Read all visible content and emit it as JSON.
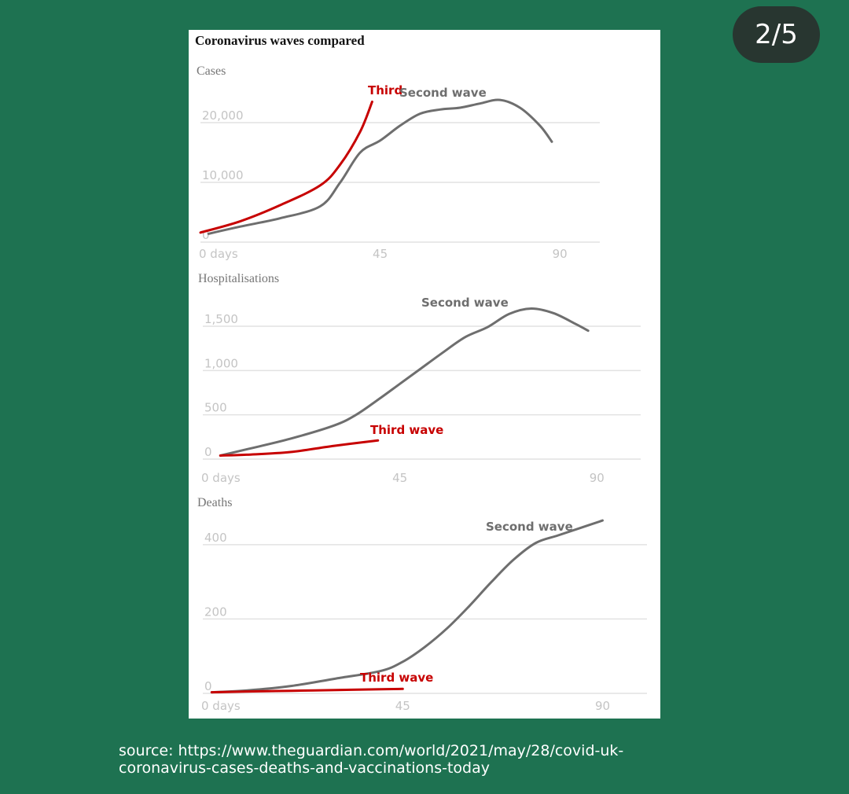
{
  "badge": "2/5",
  "title": "Coronavirus waves compared",
  "source": {
    "line1": "source: https://www.theguardian.com/world/2021/may/28/covid-uk-",
    "line2": "coronavirus-cases-deaths-and-vaccinations-today"
  },
  "colors": {
    "second_wave": "#6e6e6e",
    "third_wave": "#c70000"
  },
  "chart_data": [
    {
      "type": "line",
      "title": "Cases",
      "x_ticks": [
        0,
        45,
        90
      ],
      "x_tick_labels": [
        "0 days",
        "45",
        "90"
      ],
      "y_ticks": [
        0,
        10000,
        20000
      ],
      "y_tick_labels": [
        "0",
        "10,000",
        "20,000"
      ],
      "xlim": [
        0,
        100
      ],
      "ylim": [
        0,
        25000
      ],
      "grid": true,
      "series": [
        {
          "name": "Second wave",
          "x": [
            2,
            10,
            20,
            30,
            35,
            40,
            45,
            50,
            55,
            60,
            65,
            70,
            75,
            80,
            85,
            88
          ],
          "y": [
            1400,
            2600,
            4000,
            6000,
            10000,
            15000,
            17000,
            19500,
            21500,
            22200,
            22500,
            23200,
            23800,
            22500,
            19500,
            16800
          ]
        },
        {
          "name": "Third",
          "x": [
            0,
            10,
            20,
            30,
            35,
            40,
            43
          ],
          "y": [
            1600,
            3500,
            6200,
            9500,
            13000,
            18500,
            23500
          ]
        }
      ]
    },
    {
      "type": "line",
      "title": "Hospitalisations",
      "x_ticks": [
        0,
        45,
        90
      ],
      "x_tick_labels": [
        "0 days",
        "45",
        "90"
      ],
      "y_ticks": [
        0,
        500,
        1000,
        1500
      ],
      "y_tick_labels": [
        "0",
        "500",
        "1,000",
        "1,500"
      ],
      "xlim": [
        0,
        100
      ],
      "ylim": [
        0,
        1900
      ],
      "grid": true,
      "series": [
        {
          "name": "Second wave",
          "x": [
            4,
            10,
            20,
            30,
            35,
            40,
            45,
            50,
            55,
            60,
            65,
            70,
            75,
            80,
            85,
            88
          ],
          "y": [
            40,
            110,
            230,
            380,
            500,
            670,
            850,
            1030,
            1210,
            1380,
            1490,
            1640,
            1700,
            1650,
            1530,
            1450
          ]
        },
        {
          "name": "Third wave",
          "x": [
            4,
            10,
            20,
            30,
            40
          ],
          "y": [
            40,
            50,
            80,
            150,
            210
          ]
        }
      ]
    },
    {
      "type": "line",
      "title": "Deaths",
      "x_ticks": [
        0,
        45,
        90
      ],
      "x_tick_labels": [
        "0 days",
        "45",
        "90"
      ],
      "y_ticks": [
        0,
        200,
        400
      ],
      "y_tick_labels": [
        "0",
        "200",
        "400"
      ],
      "xlim": [
        0,
        100
      ],
      "ylim": [
        0,
        480
      ],
      "grid": true,
      "series": [
        {
          "name": "Second wave",
          "x": [
            2,
            10,
            20,
            30,
            40,
            45,
            50,
            55,
            60,
            65,
            70,
            75,
            80,
            85,
            90
          ],
          "y": [
            3,
            8,
            20,
            40,
            60,
            85,
            125,
            175,
            235,
            300,
            360,
            405,
            425,
            445,
            465
          ]
        },
        {
          "name": "Third wave",
          "x": [
            2,
            10,
            20,
            30,
            40,
            45
          ],
          "y": [
            3,
            5,
            7,
            9,
            11,
            12
          ]
        }
      ]
    }
  ]
}
